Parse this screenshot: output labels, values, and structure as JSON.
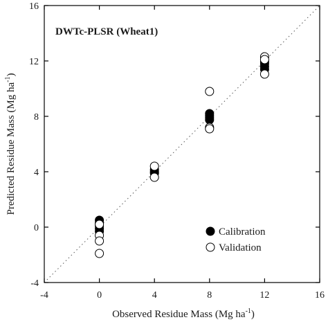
{
  "chart_data": {
    "type": "scatter",
    "title": "DWTc-PLSR (Wheat1)",
    "xlabel": "Observed Residue Mass (Mg ha",
    "ylabel": "Predicted Residue Mass (Mg ha",
    "unit_superscript": "-1",
    "unit_close": ")",
    "xlim": [
      -4,
      16
    ],
    "ylim": [
      -4,
      16
    ],
    "xticks": [
      -4,
      0,
      4,
      8,
      12,
      16
    ],
    "yticks": [
      -4,
      0,
      4,
      8,
      12,
      16
    ],
    "reference_line": "1:1 dotted",
    "legend_position": "bottom-right",
    "series": [
      {
        "name": "Calibration",
        "marker": "filled-circle",
        "color": "#000000",
        "points": [
          [
            0,
            0.5
          ],
          [
            0,
            0.3
          ],
          [
            0,
            0.1
          ],
          [
            0,
            -0.1
          ],
          [
            0,
            -0.3
          ],
          [
            4,
            4.15
          ],
          [
            4,
            4.0
          ],
          [
            4,
            3.9
          ],
          [
            8,
            8.2
          ],
          [
            8,
            8.05
          ],
          [
            8,
            7.9
          ],
          [
            8,
            7.75
          ],
          [
            12,
            11.95
          ],
          [
            12,
            11.8
          ],
          [
            12,
            11.6
          ],
          [
            12,
            11.4
          ]
        ]
      },
      {
        "name": "Validation",
        "marker": "open-circle",
        "color": "#000000",
        "points": [
          [
            0,
            0.2
          ],
          [
            0,
            -0.6
          ],
          [
            0,
            -1.0
          ],
          [
            0,
            -1.9
          ],
          [
            4,
            4.4
          ],
          [
            4,
            3.6
          ],
          [
            8,
            9.8
          ],
          [
            8,
            7.2
          ],
          [
            8,
            7.1
          ],
          [
            12,
            12.3
          ],
          [
            12,
            12.1
          ],
          [
            12,
            11.05
          ]
        ]
      }
    ]
  }
}
